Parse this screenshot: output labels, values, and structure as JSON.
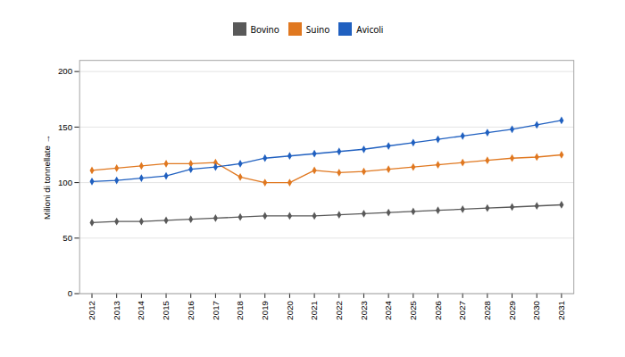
{
  "chart_data": {
    "type": "line",
    "x": [
      2012,
      2013,
      2014,
      2015,
      2016,
      2017,
      2018,
      2019,
      2020,
      2021,
      2022,
      2023,
      2024,
      2025,
      2026,
      2027,
      2028,
      2029,
      2030,
      2031
    ],
    "series": [
      {
        "name": "Bovino",
        "color": "#595959",
        "values": [
          64,
          65,
          65,
          66,
          67,
          68,
          69,
          70,
          70,
          70,
          71,
          72,
          73,
          74,
          75,
          76,
          77,
          78,
          79,
          80
        ]
      },
      {
        "name": "Suino",
        "color": "#e07820",
        "values": [
          111,
          113,
          115,
          117,
          117,
          118,
          105,
          100,
          100,
          111,
          109,
          110,
          112,
          114,
          116,
          118,
          120,
          122,
          123,
          125
        ]
      },
      {
        "name": "Avicoli",
        "color": "#2060c0",
        "values": [
          101,
          102,
          104,
          106,
          112,
          114,
          117,
          122,
          124,
          126,
          128,
          130,
          133,
          136,
          139,
          142,
          145,
          148,
          152,
          156
        ]
      }
    ],
    "y_label": "Milioni di tonnellate",
    "xlim": [
      2011.5,
      2031.5
    ],
    "xticks": [
      2012,
      2013,
      2014,
      2015,
      2016,
      2017,
      2018,
      2019,
      2020,
      2021,
      2022,
      2023,
      2024,
      2025,
      2026,
      2027,
      2028,
      2029,
      2030,
      2031
    ],
    "ylim": [
      0,
      210
    ],
    "yticks": [
      0,
      50,
      100,
      150,
      200
    ],
    "grid": true,
    "legend": "top",
    "marker": "diamond"
  }
}
